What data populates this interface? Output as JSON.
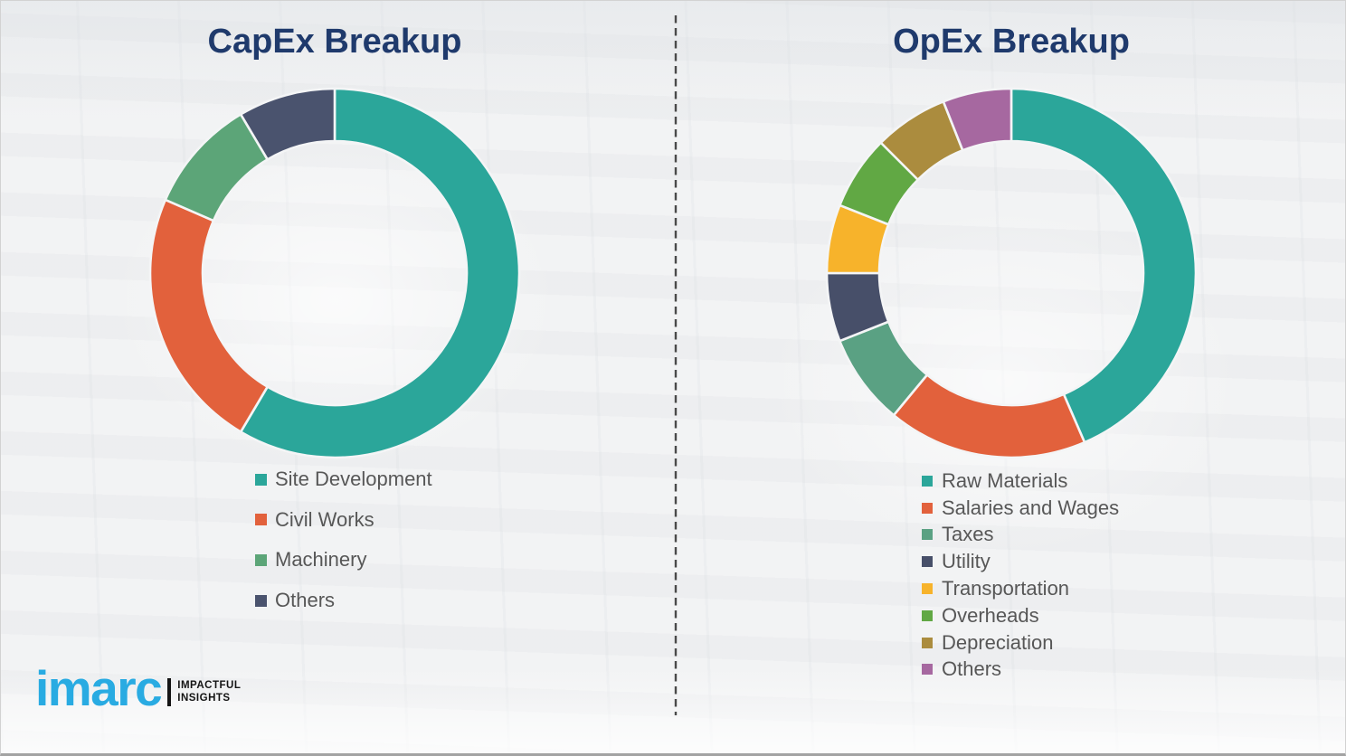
{
  "page": {
    "background_color": "#f0f1f2",
    "divider_style": "vertical-dashed",
    "divider_color": "#4a4a4a"
  },
  "chart_data": [
    {
      "type": "pie",
      "subtype": "donut",
      "title": "CapEx Breakup",
      "title_color": "#1f3a6c",
      "categories": [
        "Site Development",
        "Civil Works",
        "Machinery",
        "Others"
      ],
      "values": [
        58.5,
        23,
        10,
        8.5
      ],
      "colors": [
        "#2BA69A",
        "#E2613C",
        "#5CA578",
        "#4A536E"
      ],
      "start_angle_deg": 0,
      "direction": "clockwise",
      "inner_radius_ratio": 0.715,
      "legend_position": "below-left",
      "data_labels": "none"
    },
    {
      "type": "pie",
      "subtype": "donut",
      "title": "OpEx Breakup",
      "title_color": "#1f3a6c",
      "categories": [
        "Raw Materials",
        "Salaries and Wages",
        "Taxes",
        "Utility",
        "Transportation",
        "Overheads",
        "Depreciation",
        "Others"
      ],
      "values": [
        43.5,
        17.5,
        8,
        6,
        6,
        6.5,
        6.5,
        6
      ],
      "colors": [
        "#2BA69A",
        "#E2613C",
        "#5AA183",
        "#474F69",
        "#F7B32B",
        "#61A844",
        "#AB8C3E",
        "#A668A0"
      ],
      "start_angle_deg": 0,
      "direction": "clockwise",
      "inner_radius_ratio": 0.715,
      "legend_position": "below-left",
      "data_labels": "none"
    }
  ],
  "branding": {
    "logo_text": "imarc",
    "logo_color": "#29ABE2",
    "tagline_line1": "IMPACTFUL",
    "tagline_line2": "INSIGHTS",
    "tagline_color": "#141414"
  }
}
